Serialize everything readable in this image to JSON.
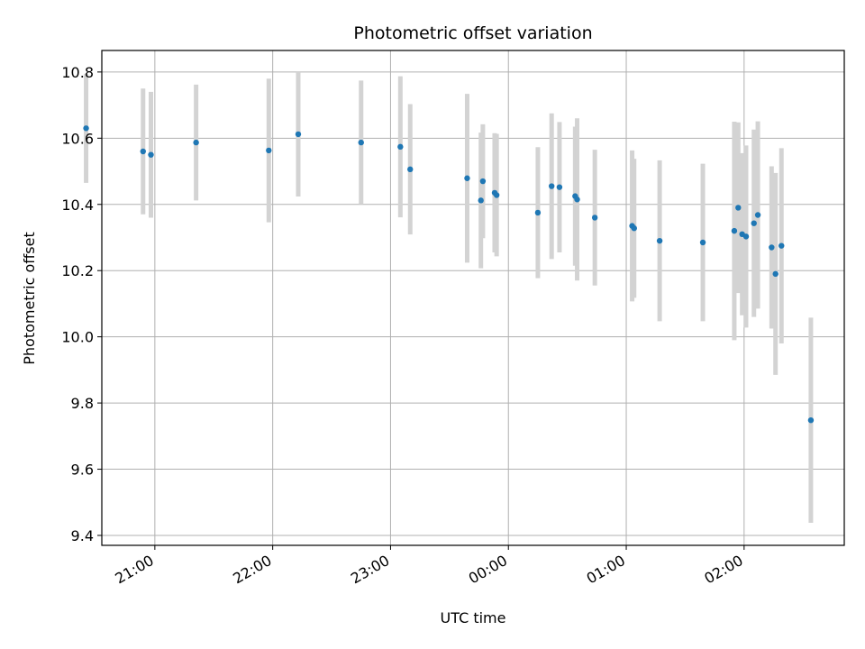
{
  "chart_data": {
    "type": "scatter",
    "title": "Photometric offset variation",
    "xlabel": "UTC time",
    "ylabel": "Photometric offset",
    "x_axis_type": "time",
    "xlim": [
      "20:33",
      "02:51"
    ],
    "ylim": [
      9.37,
      10.865
    ],
    "grid": true,
    "x_ticks": [
      "21:00",
      "22:00",
      "23:00",
      "00:00",
      "01:00",
      "02:00"
    ],
    "y_ticks": [
      "9.4",
      "9.6",
      "9.8",
      "10.0",
      "10.2",
      "10.4",
      "10.6",
      "10.8"
    ],
    "colors": {
      "point": "#1f77b4",
      "errorbar": "#d3d3d3",
      "grid": "#b0b0b0"
    },
    "points": [
      {
        "x": "20:25",
        "y": 10.63,
        "err": 0.165
      },
      {
        "x": "20:54",
        "y": 10.56,
        "err": 0.19
      },
      {
        "x": "20:58",
        "y": 10.55,
        "err": 0.19
      },
      {
        "x": "21:21",
        "y": 10.587,
        "err": 0.175
      },
      {
        "x": "21:58",
        "y": 10.563,
        "err": 0.217
      },
      {
        "x": "22:13",
        "y": 10.612,
        "err": 0.188
      },
      {
        "x": "22:45",
        "y": 10.587,
        "err": 0.187
      },
      {
        "x": "23:05",
        "y": 10.574,
        "err": 0.213
      },
      {
        "x": "23:10",
        "y": 10.506,
        "err": 0.197
      },
      {
        "x": "23:39",
        "y": 10.479,
        "err": 0.255
      },
      {
        "x": "23:46",
        "y": 10.412,
        "err": 0.205
      },
      {
        "x": "23:47",
        "y": 10.47,
        "err": 0.172
      },
      {
        "x": "23:53",
        "y": 10.435,
        "err": 0.18
      },
      {
        "x": "23:54",
        "y": 10.428,
        "err": 0.185
      },
      {
        "x": "00:15",
        "y": 10.375,
        "err": 0.198
      },
      {
        "x": "00:22",
        "y": 10.455,
        "err": 0.22
      },
      {
        "x": "00:26",
        "y": 10.452,
        "err": 0.197
      },
      {
        "x": "00:34",
        "y": 10.425,
        "err": 0.21
      },
      {
        "x": "00:35",
        "y": 10.415,
        "err": 0.245
      },
      {
        "x": "00:44",
        "y": 10.36,
        "err": 0.205
      },
      {
        "x": "01:03",
        "y": 10.335,
        "err": 0.228
      },
      {
        "x": "01:04",
        "y": 10.328,
        "err": 0.21
      },
      {
        "x": "01:17",
        "y": 10.29,
        "err": 0.243
      },
      {
        "x": "01:39",
        "y": 10.285,
        "err": 0.238
      },
      {
        "x": "01:55",
        "y": 10.32,
        "err": 0.33
      },
      {
        "x": "01:57",
        "y": 10.39,
        "err": 0.258
      },
      {
        "x": "01:59",
        "y": 10.31,
        "err": 0.245
      },
      {
        "x": "02:01",
        "y": 10.303,
        "err": 0.275
      },
      {
        "x": "02:05",
        "y": 10.343,
        "err": 0.283
      },
      {
        "x": "02:07",
        "y": 10.368,
        "err": 0.283
      },
      {
        "x": "02:14",
        "y": 10.27,
        "err": 0.245
      },
      {
        "x": "02:16",
        "y": 10.19,
        "err": 0.305
      },
      {
        "x": "02:19",
        "y": 10.275,
        "err": 0.295
      },
      {
        "x": "02:34",
        "y": 9.748,
        "err": 0.31
      }
    ]
  }
}
